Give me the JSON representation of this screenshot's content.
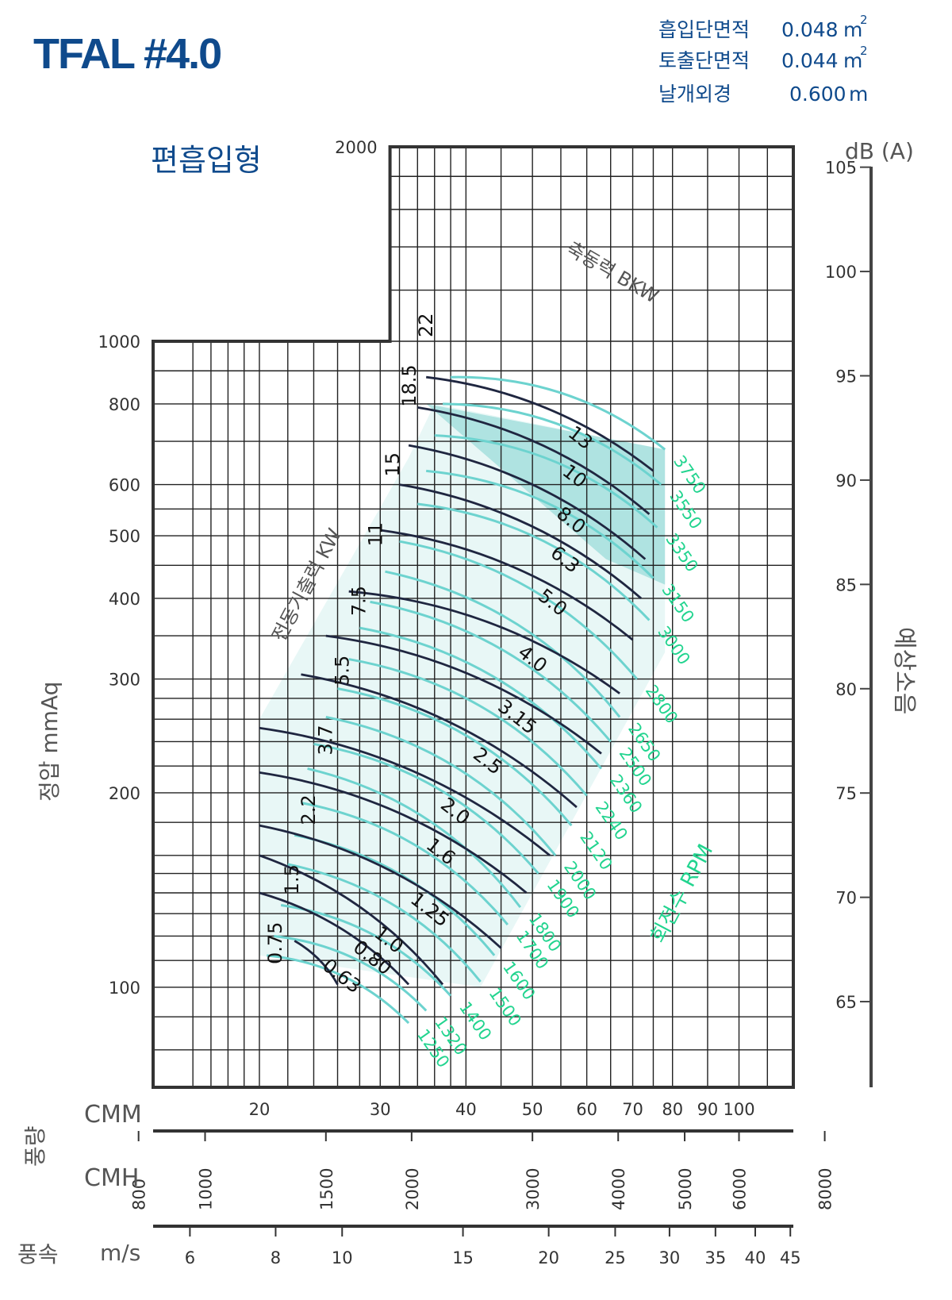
{
  "chart_data": {
    "type": "line",
    "title": "TFAL #4.0",
    "subtitle": "편흡입형",
    "specs": [
      {
        "label": "흡입단면적",
        "value": "0.048",
        "unit": "m",
        "sup": "2"
      },
      {
        "label": "토출단면적",
        "value": "0.044",
        "unit": "m",
        "sup": "2"
      },
      {
        "label": "날개외경",
        "value": "0.600",
        "unit": "m",
        "sup": ""
      }
    ],
    "ylabel": "정압 mmAq",
    "y_scale": "log",
    "ylim": [
      70,
      2000
    ],
    "y_ticks": [
      100,
      200,
      300,
      400,
      500,
      600,
      800,
      1000,
      2000
    ],
    "y2label": "예상소음",
    "y2_unit": "dB (A)",
    "y2_ticks": [
      65,
      70,
      75,
      80,
      85,
      90,
      95,
      100,
      105
    ],
    "x_group_label": "풍량",
    "x_scale": "log",
    "xlim": [
      14,
      120
    ],
    "cmm_label": "CMM",
    "cmm_ticks": [
      20,
      30,
      40,
      50,
      60,
      70,
      80,
      90,
      100
    ],
    "cmh_label": "CMH",
    "cmh_ticks": [
      800,
      1000,
      1500,
      2000,
      3000,
      4000,
      5000,
      6000,
      8000
    ],
    "speed_group_label": "풍속",
    "speed_label": "m/s",
    "speed_ticks": [
      6,
      8,
      10,
      15,
      20,
      25,
      30,
      35,
      40,
      45
    ],
    "shaft_power_label": "축동력 BKW",
    "motor_power_label": "전동기출력 KW",
    "rpm_label": "회전수 RPM",
    "rpm_curves": [
      {
        "rpm": "1250",
        "x0": 20.5,
        "y0": 112,
        "x1": 33,
        "y1": 88
      },
      {
        "rpm": "1320",
        "x0": 21,
        "y0": 120,
        "x1": 35,
        "y1": 92
      },
      {
        "rpm": "1400",
        "x0": 21.5,
        "y0": 134,
        "x1": 38,
        "y1": 97
      },
      {
        "rpm": "1500",
        "x0": 22,
        "y0": 155,
        "x1": 42,
        "y1": 102
      },
      {
        "rpm": "1600",
        "x0": 22.5,
        "y0": 172,
        "x1": 44,
        "y1": 112
      },
      {
        "rpm": "1700",
        "x0": 23,
        "y0": 193,
        "x1": 46,
        "y1": 125
      },
      {
        "rpm": "1800",
        "x0": 23.5,
        "y0": 218,
        "x1": 48,
        "y1": 133
      },
      {
        "rpm": "1900",
        "x0": 24,
        "y0": 238,
        "x1": 51,
        "y1": 150
      },
      {
        "rpm": "2000",
        "x0": 25,
        "y0": 262,
        "x1": 54,
        "y1": 160
      },
      {
        "rpm": "2120",
        "x0": 26,
        "y0": 290,
        "x1": 57,
        "y1": 178
      },
      {
        "rpm": "2240",
        "x0": 27,
        "y0": 322,
        "x1": 60,
        "y1": 198
      },
      {
        "rpm": "2360",
        "x0": 28,
        "y0": 360,
        "x1": 63,
        "y1": 218
      },
      {
        "rpm": "2500",
        "x0": 29,
        "y0": 395,
        "x1": 65,
        "y1": 240
      },
      {
        "rpm": "2650",
        "x0": 30.5,
        "y0": 440,
        "x1": 67,
        "y1": 262
      },
      {
        "rpm": "2800",
        "x0": 32,
        "y0": 490,
        "x1": 71,
        "y1": 300
      },
      {
        "rpm": "3000",
        "x0": 34,
        "y0": 560,
        "x1": 74,
        "y1": 370
      },
      {
        "rpm": "3150",
        "x0": 35,
        "y0": 630,
        "x1": 75,
        "y1": 430
      },
      {
        "rpm": "3350",
        "x0": 36,
        "y0": 715,
        "x1": 76,
        "y1": 515
      },
      {
        "rpm": "3550",
        "x0": 37,
        "y0": 800,
        "x1": 77,
        "y1": 600
      },
      {
        "rpm": "3750",
        "x0": 38,
        "y0": 880,
        "x1": 78,
        "y1": 680
      }
    ],
    "bkw_curves": [
      {
        "bkw": "0.63",
        "x0": 22.5,
        "y0": 118,
        "x1": 26,
        "y1": 101
      },
      {
        "bkw": "0.80",
        "x0": 20,
        "y0": 140,
        "x1": 33,
        "y1": 101
      },
      {
        "bkw": "1.0",
        "x0": 20,
        "y0": 160,
        "x1": 37,
        "y1": 101
      },
      {
        "bkw": "1.25",
        "x0": 20,
        "y0": 178,
        "x1": 45,
        "y1": 115
      },
      {
        "bkw": "1.6",
        "x0": 20,
        "y0": 215,
        "x1": 49,
        "y1": 140
      },
      {
        "bkw": "2.0",
        "x0": 20,
        "y0": 252,
        "x1": 53,
        "y1": 160
      },
      {
        "bkw": "2.5",
        "x0": 23,
        "y0": 305,
        "x1": 58,
        "y1": 190
      },
      {
        "bkw": "3.15",
        "x0": 25,
        "y0": 350,
        "x1": 63,
        "y1": 230
      },
      {
        "bkw": "4.0",
        "x0": 27,
        "y0": 410,
        "x1": 67,
        "y1": 285
      },
      {
        "bkw": "5.0",
        "x0": 30,
        "y0": 510,
        "x1": 70,
        "y1": 345
      },
      {
        "bkw": "6.3",
        "x0": 32,
        "y0": 600,
        "x1": 72,
        "y1": 400
      },
      {
        "bkw": "8.0",
        "x0": 33,
        "y0": 690,
        "x1": 73,
        "y1": 460
      },
      {
        "bkw": "10",
        "x0": 34,
        "y0": 790,
        "x1": 74,
        "y1": 540
      },
      {
        "bkw": "13",
        "x0": 35,
        "y0": 880,
        "x1": 75,
        "y1": 630
      }
    ],
    "motor_kw": [
      "0.75",
      "1.5",
      "2.2",
      "3.7",
      "5.5",
      "7.5",
      "11",
      "15",
      "18.5",
      "22"
    ],
    "colors": {
      "frame": "#333333",
      "grid": "#222222",
      "bkw": "#1f2640",
      "rpm": "#6dd3cf",
      "rpm_text": "#22d48f",
      "fill": "#7fd4cf",
      "title": "#0f4a8c",
      "label": "#555555"
    }
  }
}
